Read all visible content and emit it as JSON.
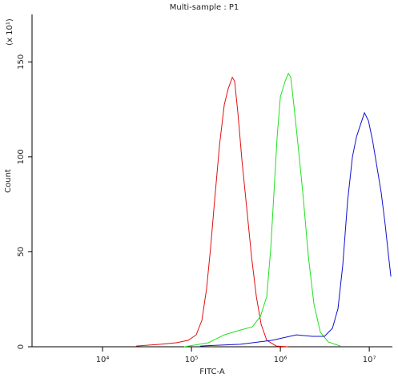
{
  "chart_data": {
    "type": "line",
    "title": "Multi-sample : P1",
    "x_label": "FITC-A",
    "y_label": "Count",
    "y_multiplier": "(x 10¹)",
    "xscale": "log",
    "xlim": [
      1610,
      18200000
    ],
    "ylim": [
      0,
      175
    ],
    "xticks": [
      {
        "value": 10000,
        "label": "10⁴"
      },
      {
        "value": 100000,
        "label": "10⁵"
      },
      {
        "value": 1000000,
        "label": "10⁶"
      },
      {
        "value": 10000000,
        "label": "10⁷"
      }
    ],
    "yticks": [
      0,
      50,
      100,
      150
    ],
    "series": [
      {
        "color": "#e01010",
        "x": [
          23900,
          44600,
          67500,
          92100,
          113000,
          131000,
          148000,
          164000,
          182000,
          207000,
          234000,
          259000,
          288000,
          306000,
          333000,
          370000,
          419000,
          474000,
          537000,
          608000,
          703000,
          902000,
          1230000
        ],
        "values": [
          0.4,
          1.3,
          2.1,
          3.4,
          6.3,
          13.9,
          30.7,
          51.8,
          77.1,
          106.5,
          127.5,
          135.9,
          141.9,
          139.8,
          123.0,
          97.8,
          72.6,
          47.5,
          26.5,
          11.8,
          3.4,
          0.4,
          0
        ]
      },
      {
        "color": "#20e020",
        "x": [
          83000,
          155000,
          234000,
          355000,
          484000,
          596000,
          703000,
          780000,
          847000,
          921000,
          1000000,
          1130000,
          1230000,
          1310000,
          1420000,
          1580000,
          1790000,
          2070000,
          2390000,
          2820000,
          3470000,
          4740000
        ],
        "values": [
          0,
          2.1,
          6.3,
          8.8,
          10.5,
          16.0,
          26.5,
          51.8,
          81.2,
          110.6,
          131.6,
          139.8,
          144.0,
          141.9,
          127.1,
          106.1,
          80.8,
          47.1,
          22.3,
          7.6,
          2.5,
          0.4
        ]
      },
      {
        "color": "#1010d0",
        "x": [
          126000,
          355000,
          813000,
          1510000,
          2290000,
          3130000,
          3850000,
          4450000,
          5040000,
          5710000,
          6470000,
          7180000,
          7960000,
          8830000,
          9790000,
          10900000,
          12100000,
          13600000,
          15100000,
          16500000,
          17500000
        ],
        "values": [
          0.4,
          1.3,
          3.4,
          6.3,
          5.5,
          5.5,
          9.7,
          20.2,
          43.3,
          76.9,
          100.0,
          110.6,
          116.9,
          123.2,
          119.0,
          108.5,
          95.8,
          81.2,
          64.3,
          47.5,
          37.0
        ]
      }
    ]
  }
}
